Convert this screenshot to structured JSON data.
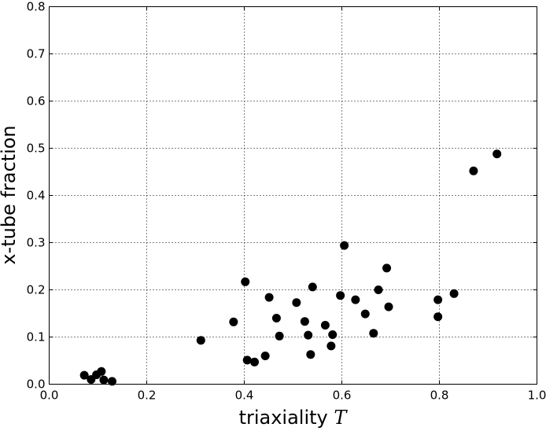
{
  "chart_data": {
    "type": "scatter",
    "xlabel": "triaxiality",
    "xlabel_symbol": "T",
    "ylabel": "x-tube fraction",
    "xlim": [
      0.0,
      1.0
    ],
    "ylim": [
      0.0,
      0.8
    ],
    "grid": true,
    "x_ticks": [
      "0.0",
      "0.2",
      "0.4",
      "0.6",
      "0.8",
      "1.0"
    ],
    "y_ticks": [
      "0.0",
      "0.1",
      "0.2",
      "0.3",
      "0.4",
      "0.5",
      "0.6",
      "0.7",
      "0.8"
    ],
    "marker_color": "#000000",
    "points": [
      {
        "x": 0.072,
        "y": 0.019
      },
      {
        "x": 0.086,
        "y": 0.01
      },
      {
        "x": 0.097,
        "y": 0.02
      },
      {
        "x": 0.107,
        "y": 0.027
      },
      {
        "x": 0.112,
        "y": 0.009
      },
      {
        "x": 0.129,
        "y": 0.006
      },
      {
        "x": 0.311,
        "y": 0.093
      },
      {
        "x": 0.378,
        "y": 0.132
      },
      {
        "x": 0.402,
        "y": 0.217
      },
      {
        "x": 0.406,
        "y": 0.051
      },
      {
        "x": 0.421,
        "y": 0.047
      },
      {
        "x": 0.443,
        "y": 0.06
      },
      {
        "x": 0.451,
        "y": 0.184
      },
      {
        "x": 0.466,
        "y": 0.14
      },
      {
        "x": 0.472,
        "y": 0.102
      },
      {
        "x": 0.507,
        "y": 0.173
      },
      {
        "x": 0.524,
        "y": 0.133
      },
      {
        "x": 0.531,
        "y": 0.104
      },
      {
        "x": 0.536,
        "y": 0.063
      },
      {
        "x": 0.54,
        "y": 0.206
      },
      {
        "x": 0.566,
        "y": 0.125
      },
      {
        "x": 0.578,
        "y": 0.081
      },
      {
        "x": 0.581,
        "y": 0.105
      },
      {
        "x": 0.597,
        "y": 0.188
      },
      {
        "x": 0.605,
        "y": 0.294
      },
      {
        "x": 0.628,
        "y": 0.179
      },
      {
        "x": 0.648,
        "y": 0.149
      },
      {
        "x": 0.665,
        "y": 0.108
      },
      {
        "x": 0.675,
        "y": 0.2
      },
      {
        "x": 0.692,
        "y": 0.246
      },
      {
        "x": 0.696,
        "y": 0.164
      },
      {
        "x": 0.797,
        "y": 0.179
      },
      {
        "x": 0.797,
        "y": 0.143
      },
      {
        "x": 0.83,
        "y": 0.192
      },
      {
        "x": 0.87,
        "y": 0.452
      },
      {
        "x": 0.918,
        "y": 0.488
      }
    ]
  }
}
